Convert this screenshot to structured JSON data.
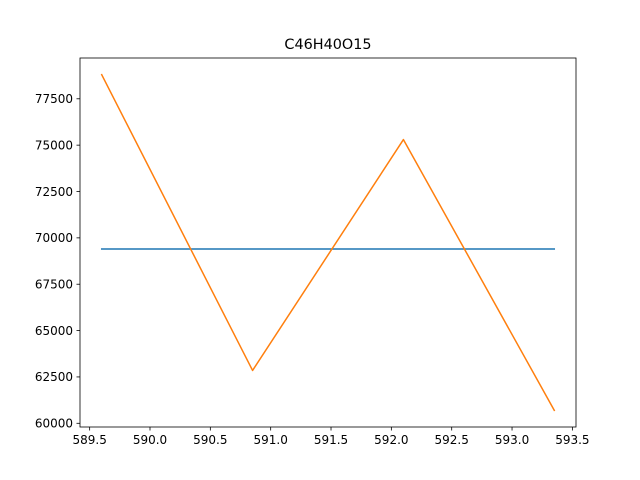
{
  "chart_data": {
    "type": "line",
    "title": "C46H40O15",
    "xlabel": "",
    "ylabel": "",
    "xlim": [
      589.42,
      593.53
    ],
    "ylim": [
      59800,
      79700
    ],
    "x_ticks": [
      589.5,
      590.0,
      590.5,
      591.0,
      591.5,
      592.0,
      592.5,
      593.0,
      593.5
    ],
    "x_tick_labels": [
      "589.5",
      "590.0",
      "590.5",
      "591.0",
      "591.5",
      "592.0",
      "592.5",
      "593.0",
      "593.5"
    ],
    "y_ticks": [
      60000,
      62500,
      65000,
      67500,
      70000,
      72500,
      75000,
      77500
    ],
    "y_tick_labels": [
      "60000",
      "62500",
      "65000",
      "67500",
      "70000",
      "72500",
      "75000",
      "77500"
    ],
    "grid": false,
    "legend": "none",
    "series": [
      {
        "color": "#1f77b4",
        "x": [
          589.6,
          593.35
        ],
        "y": [
          69400,
          69400
        ]
      },
      {
        "color": "#ff7f0e",
        "x": [
          589.6,
          590.85,
          592.1,
          593.35
        ],
        "y": [
          78800,
          62850,
          75300,
          60700
        ]
      }
    ]
  }
}
